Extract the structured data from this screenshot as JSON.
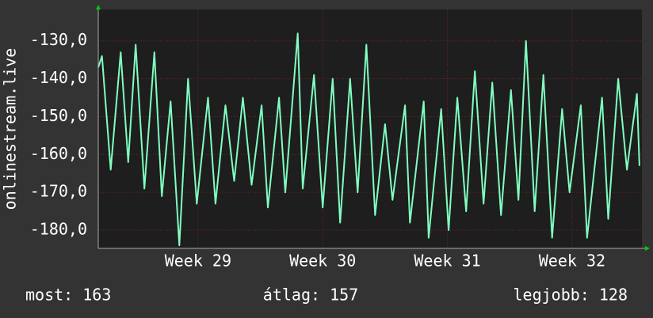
{
  "chart_data": {
    "type": "line",
    "y_label": "onlinestream.live",
    "x": [
      28.2,
      28.23,
      28.3,
      28.38,
      28.44,
      28.5,
      28.57,
      28.65,
      28.71,
      28.78,
      28.85,
      28.92,
      28.99,
      29.08,
      29.14,
      29.22,
      29.29,
      29.36,
      29.43,
      29.51,
      29.56,
      29.65,
      29.7,
      29.8,
      29.84,
      29.93,
      30.0,
      30.08,
      30.14,
      30.22,
      30.28,
      30.35,
      30.42,
      30.5,
      30.56,
      30.66,
      30.7,
      30.81,
      30.85,
      30.95,
      31.01,
      31.08,
      31.15,
      31.22,
      31.29,
      31.36,
      31.43,
      31.51,
      31.57,
      31.63,
      31.7,
      31.77,
      31.84,
      31.92,
      31.98,
      32.07,
      32.12,
      32.24,
      32.29,
      32.37,
      32.44,
      32.52,
      32.54
    ],
    "series": [
      {
        "color": "#80ffc0",
        "values": [
          -137,
          -134,
          -164,
          -133,
          -162,
          -131,
          -169,
          -133,
          -171,
          -146,
          -184,
          -140,
          -173,
          -145,
          -173,
          -147,
          -167,
          -145,
          -168,
          -147,
          -174,
          -145,
          -170,
          -128,
          -169,
          -139,
          -174,
          -140,
          -178,
          -140,
          -170,
          -131,
          -176,
          -152,
          -172,
          -147,
          -178,
          -146,
          -182,
          -148,
          -180,
          -145,
          -175,
          -138,
          -173,
          -141,
          -176,
          -143,
          -172,
          -130,
          -175,
          -139,
          -182,
          -148,
          -170,
          -147,
          -182,
          -145,
          -177,
          -140,
          -164,
          -144,
          -163
        ]
      }
    ],
    "xlim": [
      28.2,
      32.56
    ],
    "xticks": [
      {
        "value": 29,
        "label": "Week 29"
      },
      {
        "value": 30,
        "label": "Week 30"
      },
      {
        "value": 31,
        "label": "Week 31"
      },
      {
        "value": 32,
        "label": "Week 32"
      }
    ],
    "ylim": [
      -184.8,
      -121.7
    ],
    "yticks": [
      {
        "value": -180,
        "label": "-180,0"
      },
      {
        "value": -170,
        "label": "-170,0"
      },
      {
        "value": -160,
        "label": "-160,0"
      },
      {
        "value": -150,
        "label": "-150,0"
      },
      {
        "value": -140,
        "label": "-140,0"
      },
      {
        "value": -130,
        "label": "-130,0"
      }
    ],
    "grid": true,
    "footer": [
      "most: 163",
      "átlag: 157",
      "legjobb: 128"
    ]
  }
}
